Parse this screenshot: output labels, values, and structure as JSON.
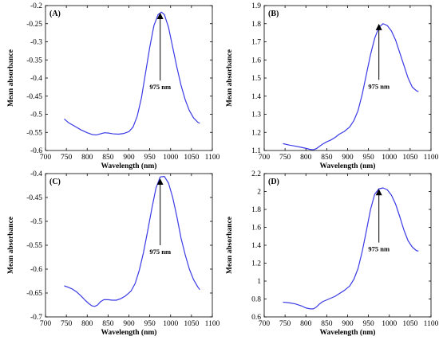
{
  "chart_data": [
    {
      "type": "line",
      "panel_label": "(A)",
      "xlabel": "Wavelength (nm)",
      "ylabel": "Mean absorbance",
      "xlim": [
        700,
        1100
      ],
      "ylim": [
        -0.6,
        -0.2
      ],
      "xticks": [
        "700",
        "750",
        "800",
        "850",
        "900",
        "950",
        "1000",
        "1050",
        "1100"
      ],
      "yticks": [
        "-0.6",
        "-0.55",
        "-0.5",
        "-0.45",
        "-0.4",
        "-0.35",
        "-0.3",
        "-0.25",
        "-0.2"
      ],
      "series": [
        {
          "color": "#3a3ae6",
          "x": [
            745,
            755,
            770,
            785,
            800,
            812,
            822,
            832,
            842,
            852,
            862,
            875,
            888,
            900,
            910,
            920,
            930,
            940,
            950,
            960,
            970,
            978,
            985,
            995,
            1005,
            1015,
            1025,
            1035,
            1045,
            1055,
            1065,
            1070
          ],
          "y": [
            -0.513,
            -0.523,
            -0.533,
            -0.543,
            -0.551,
            -0.556,
            -0.557,
            -0.554,
            -0.551,
            -0.552,
            -0.554,
            -0.555,
            -0.553,
            -0.548,
            -0.535,
            -0.505,
            -0.455,
            -0.385,
            -0.315,
            -0.255,
            -0.225,
            -0.218,
            -0.225,
            -0.26,
            -0.315,
            -0.37,
            -0.42,
            -0.46,
            -0.49,
            -0.51,
            -0.522,
            -0.525
          ]
        }
      ],
      "annotation": {
        "text": "975 nm",
        "x": 975,
        "y_tip": -0.222,
        "y_tail": -0.407
      }
    },
    {
      "type": "line",
      "panel_label": "(B)",
      "xlabel": "Wavelength (nm)",
      "ylabel": "Mean absorbance",
      "xlim": [
        700,
        1100
      ],
      "ylim": [
        1.1,
        1.9
      ],
      "xticks": [
        "700",
        "750",
        "800",
        "850",
        "900",
        "950",
        "1000",
        "1050",
        "1100"
      ],
      "yticks": [
        "1.1",
        "1.2",
        "1.3",
        "1.4",
        "1.5",
        "1.6",
        "1.7",
        "1.8",
        "1.9"
      ],
      "series": [
        {
          "color": "#3a3ae6",
          "x": [
            745,
            760,
            775,
            790,
            800,
            810,
            818,
            825,
            832,
            840,
            850,
            860,
            870,
            880,
            892,
            905,
            915,
            925,
            935,
            945,
            955,
            965,
            975,
            985,
            995,
            1005,
            1015,
            1025,
            1035,
            1045,
            1055,
            1065,
            1070
          ],
          "y": [
            1.138,
            1.13,
            1.124,
            1.117,
            1.112,
            1.106,
            1.104,
            1.11,
            1.122,
            1.135,
            1.148,
            1.158,
            1.172,
            1.19,
            1.205,
            1.23,
            1.265,
            1.32,
            1.41,
            1.52,
            1.63,
            1.72,
            1.78,
            1.8,
            1.79,
            1.76,
            1.71,
            1.64,
            1.57,
            1.5,
            1.45,
            1.43,
            1.425
          ]
        }
      ],
      "annotation": {
        "text": "975 nm",
        "x": 975,
        "y_tip": 1.795,
        "y_tail": 1.49
      }
    },
    {
      "type": "line",
      "panel_label": "(C)",
      "xlabel": "Wavelength (nm)",
      "ylabel": "Mean absorbance",
      "xlim": [
        700,
        1100
      ],
      "ylim": [
        -0.7,
        -0.4
      ],
      "xticks": [
        "700",
        "750",
        "800",
        "850",
        "900",
        "950",
        "1000",
        "1050",
        "1100"
      ],
      "yticks": [
        "-0.7",
        "-0.65",
        "-0.6",
        "-0.55",
        "-0.5",
        "-0.45",
        "-0.4"
      ],
      "series": [
        {
          "color": "#3a3ae6",
          "x": [
            745,
            755,
            765,
            775,
            785,
            795,
            805,
            812,
            818,
            825,
            832,
            840,
            850,
            860,
            870,
            880,
            892,
            905,
            915,
            925,
            935,
            945,
            955,
            965,
            975,
            985,
            995,
            1005,
            1015,
            1025,
            1035,
            1045,
            1055,
            1065,
            1070
          ],
          "y": [
            -0.635,
            -0.638,
            -0.642,
            -0.648,
            -0.656,
            -0.665,
            -0.673,
            -0.677,
            -0.678,
            -0.675,
            -0.668,
            -0.664,
            -0.664,
            -0.665,
            -0.665,
            -0.662,
            -0.656,
            -0.646,
            -0.63,
            -0.602,
            -0.565,
            -0.52,
            -0.473,
            -0.43,
            -0.407,
            -0.406,
            -0.42,
            -0.45,
            -0.49,
            -0.535,
            -0.57,
            -0.6,
            -0.622,
            -0.637,
            -0.643
          ]
        }
      ],
      "annotation": {
        "text": "975 nm",
        "x": 975,
        "y_tip": -0.412,
        "y_tail": -0.55
      }
    },
    {
      "type": "line",
      "panel_label": "(D)",
      "xlabel": "Wavelength (nm)",
      "ylabel": "Mean absorbance",
      "xlim": [
        700,
        1100
      ],
      "ylim": [
        0.6,
        2.2
      ],
      "xticks": [
        "700",
        "750",
        "800",
        "850",
        "900",
        "950",
        "1000",
        "1050",
        "1100"
      ],
      "yticks": [
        "0.6",
        "0.8",
        "1",
        "1.2",
        "1.4",
        "1.6",
        "1.8",
        "2",
        "2.2"
      ],
      "series": [
        {
          "color": "#3a3ae6",
          "x": [
            745,
            760,
            775,
            790,
            800,
            810,
            818,
            825,
            832,
            840,
            850,
            860,
            870,
            880,
            892,
            905,
            915,
            925,
            935,
            945,
            955,
            965,
            975,
            985,
            995,
            1005,
            1015,
            1025,
            1035,
            1045,
            1055,
            1065,
            1070
          ],
          "y": [
            0.765,
            0.758,
            0.745,
            0.722,
            0.7,
            0.69,
            0.69,
            0.71,
            0.742,
            0.77,
            0.79,
            0.81,
            0.83,
            0.86,
            0.895,
            0.945,
            1.02,
            1.14,
            1.33,
            1.56,
            1.8,
            1.97,
            2.03,
            2.04,
            2.02,
            1.96,
            1.86,
            1.72,
            1.57,
            1.45,
            1.38,
            1.34,
            1.335
          ]
        }
      ],
      "annotation": {
        "text": "975 nm",
        "x": 975,
        "y_tip": 2.02,
        "y_tail": 1.43
      }
    }
  ]
}
